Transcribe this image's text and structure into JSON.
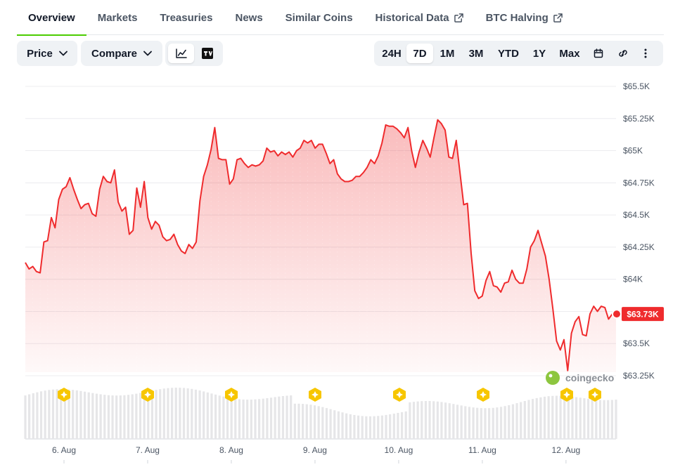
{
  "tabs": [
    "Overview",
    "Markets",
    "Treasuries",
    "News",
    "Similar Coins",
    "Historical Data",
    "BTC Halving"
  ],
  "toolbar": {
    "price_label": "Price",
    "compare_label": "Compare",
    "ranges": [
      "24H",
      "7D",
      "1M",
      "3M",
      "YTD",
      "1Y",
      "Max"
    ],
    "active_range": "7D"
  },
  "watermark": "coingecko",
  "colors": {
    "line": "#ef2b2d",
    "accent": "#4bcc00",
    "marker": "#f7c600"
  },
  "chart_data": {
    "type": "area",
    "y_ticks": [
      "$65.5K",
      "$65.25K",
      "$65K",
      "$64.75K",
      "$64.5K",
      "$64.25K",
      "$64K",
      "$63.75K",
      "$63.5K",
      "$63.25K"
    ],
    "x_ticks": [
      "6. Aug",
      "7. Aug",
      "8. Aug",
      "9. Aug",
      "10. Aug",
      "11. Aug",
      "12. Aug"
    ],
    "ylim": [
      63250,
      65500
    ],
    "current_label": "$63.73K",
    "series": [
      {
        "values": [
          64130,
          64080,
          64100,
          64060,
          64050,
          64290,
          64300,
          64480,
          64400,
          64620,
          64700,
          64720,
          64790,
          64700,
          64620,
          64550,
          64580,
          64590,
          64510,
          64490,
          64700,
          64800,
          64760,
          64750,
          64850,
          64600,
          64530,
          64560,
          64350,
          64380,
          64710,
          64560,
          64760,
          64480,
          64390,
          64450,
          64420,
          64330,
          64300,
          64310,
          64350,
          64270,
          64220,
          64200,
          64270,
          64240,
          64290,
          64610,
          64800,
          64890,
          65010,
          65180,
          64940,
          64930,
          64930,
          64740,
          64780,
          64930,
          64940,
          64900,
          64870,
          64890,
          64880,
          64890,
          64920,
          65020,
          64990,
          65000,
          64960,
          64990,
          64970,
          64990,
          64950,
          65000,
          65020,
          65080,
          65060,
          65080,
          65020,
          65050,
          65050,
          64980,
          64900,
          64930,
          64820,
          64780,
          64760,
          64760,
          64770,
          64800,
          64800,
          64830,
          64870,
          64930,
          64900,
          64960,
          65060,
          65200,
          65190,
          65190,
          65170,
          65140,
          65100,
          65180,
          65000,
          64870,
          64990,
          65080,
          65020,
          64950,
          65100,
          65240,
          65210,
          65160,
          64950,
          64940,
          65080,
          64830,
          64580,
          64590,
          64200,
          63910,
          63850,
          63870,
          63990,
          64060,
          63950,
          63940,
          63900,
          63970,
          63980,
          64070,
          64000,
          63970,
          63970,
          64080,
          64250,
          64300,
          64380,
          64280,
          64180,
          64000,
          63770,
          63520,
          63450,
          63530,
          63290,
          63580,
          63670,
          63710,
          63570,
          63560,
          63730,
          63790,
          63750,
          63790,
          63780,
          63690,
          63730,
          63730
        ]
      }
    ]
  }
}
